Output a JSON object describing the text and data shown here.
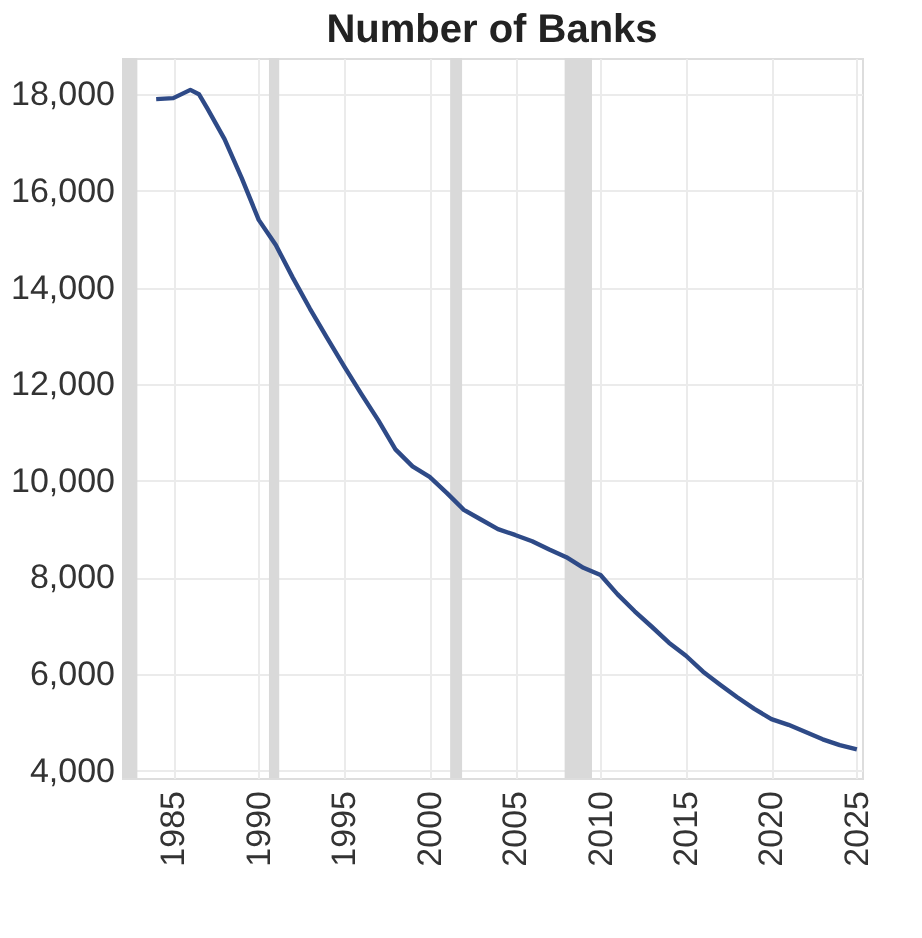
{
  "chart_data": {
    "type": "line",
    "title": "Number of Banks",
    "x": [
      1984,
      1985,
      1986,
      1986.5,
      1987,
      1988,
      1989,
      1990,
      1991,
      1992,
      1993,
      1994,
      1995,
      1996,
      1997,
      1998,
      1999,
      2000,
      2001,
      2002,
      2003,
      2004,
      2005,
      2006,
      2007,
      2008,
      2009,
      2010,
      2011,
      2012,
      2013,
      2014,
      2015,
      2016,
      2017,
      2018,
      2019,
      2020,
      2021,
      2022,
      2023,
      2024,
      2025
    ],
    "series": [
      {
        "color": "#2e4a87",
        "values": [
          17900,
          17920,
          18090,
          18000,
          17700,
          17070,
          16270,
          15400,
          14880,
          14200,
          13560,
          12960,
          12370,
          11800,
          11250,
          10650,
          10300,
          10080,
          9750,
          9400,
          9200,
          9000,
          8880,
          8750,
          8580,
          8420,
          8200,
          8050,
          7650,
          7300,
          6980,
          6650,
          6380,
          6050,
          5780,
          5520,
          5280,
          5070,
          4950,
          4800,
          4650,
          4530,
          4440
        ]
      }
    ],
    "xlim": [
      1982,
      2025.3
    ],
    "xticks": [
      1985,
      1990,
      1995,
      2000,
      2005,
      2010,
      2015,
      2020,
      2025
    ],
    "ylim": [
      3850,
      18750
    ],
    "yticks": [
      {
        "value": 4000,
        "label": "4,000"
      },
      {
        "value": 6000,
        "label": "6,000"
      },
      {
        "value": 8000,
        "label": "8,000"
      },
      {
        "value": 10000,
        "label": "10,000"
      },
      {
        "value": 12000,
        "label": "12,000"
      },
      {
        "value": 14000,
        "label": "14,000"
      },
      {
        "value": 16000,
        "label": "16,000"
      },
      {
        "value": 18000,
        "label": "18,000"
      }
    ],
    "bands": [
      {
        "axis": "x",
        "from": 1982,
        "to": 1982.9,
        "color": "#d9d9d9"
      },
      {
        "axis": "x",
        "from": 1990.6,
        "to": 1991.2,
        "color": "#d9d9d9"
      },
      {
        "axis": "x",
        "from": 2001.2,
        "to": 2001.9,
        "color": "#d9d9d9"
      },
      {
        "axis": "x",
        "from": 2007.9,
        "to": 2009.5,
        "color": "#d9d9d9"
      }
    ],
    "grid": true,
    "marker": "none",
    "line_style": "solid"
  }
}
